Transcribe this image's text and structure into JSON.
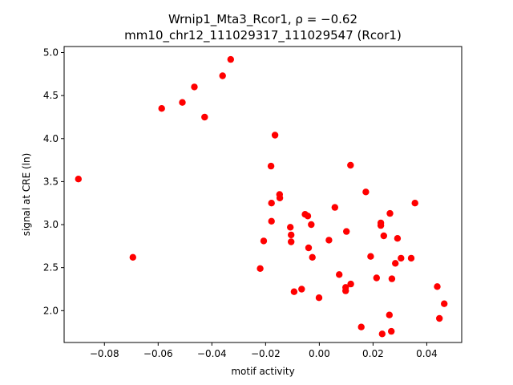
{
  "chart_data": {
    "type": "scatter",
    "title_line1": "Wrnip1_Mta3_Rcor1, ρ = −0.62",
    "title_line2": "mm10_chr12_111029317_111029547 (Rcor1)",
    "xlabel": "motif activity",
    "ylabel": "signal at CRE (ln)",
    "xlim": [
      -0.095,
      0.053
    ],
    "ylim": [
      1.63,
      5.07
    ],
    "xticks": [
      -0.08,
      -0.06,
      -0.04,
      -0.02,
      0.0,
      0.02,
      0.04
    ],
    "xtick_labels": [
      "−0.08",
      "−0.06",
      "−0.04",
      "−0.02",
      "0.00",
      "0.02",
      "0.04"
    ],
    "yticks": [
      2.0,
      2.5,
      3.0,
      3.5,
      4.0,
      4.5,
      5.0
    ],
    "ytick_labels": [
      "2.0",
      "2.5",
      "3.0",
      "3.5",
      "4.0",
      "4.5",
      "5.0"
    ],
    "grid": false,
    "marker_color": "#ff0000",
    "points": [
      {
        "x": -0.0897,
        "y": 3.53
      },
      {
        "x": -0.0694,
        "y": 2.62
      },
      {
        "x": -0.0587,
        "y": 4.35
      },
      {
        "x": -0.051,
        "y": 4.42
      },
      {
        "x": -0.0465,
        "y": 4.6
      },
      {
        "x": -0.0427,
        "y": 4.25
      },
      {
        "x": -0.036,
        "y": 4.73
      },
      {
        "x": -0.033,
        "y": 4.92
      },
      {
        "x": -0.022,
        "y": 2.49
      },
      {
        "x": -0.0207,
        "y": 2.81
      },
      {
        "x": -0.018,
        "y": 3.68
      },
      {
        "x": -0.0178,
        "y": 3.04
      },
      {
        "x": -0.0178,
        "y": 3.25
      },
      {
        "x": -0.0165,
        "y": 4.04
      },
      {
        "x": -0.0148,
        "y": 3.35
      },
      {
        "x": -0.0147,
        "y": 3.31
      },
      {
        "x": -0.0108,
        "y": 2.97
      },
      {
        "x": -0.0105,
        "y": 2.88
      },
      {
        "x": -0.0105,
        "y": 2.8
      },
      {
        "x": -0.0094,
        "y": 2.22
      },
      {
        "x": -0.0066,
        "y": 2.25
      },
      {
        "x": -0.0053,
        "y": 3.12
      },
      {
        "x": -0.0043,
        "y": 3.1
      },
      {
        "x": -0.004,
        "y": 2.73
      },
      {
        "x": -0.003,
        "y": 3.0
      },
      {
        "x": -0.0026,
        "y": 2.62
      },
      {
        "x": -0.0001,
        "y": 2.15
      },
      {
        "x": 0.0036,
        "y": 2.82
      },
      {
        "x": 0.0058,
        "y": 3.2
      },
      {
        "x": 0.0074,
        "y": 2.42
      },
      {
        "x": 0.0098,
        "y": 2.27
      },
      {
        "x": 0.0098,
        "y": 2.23
      },
      {
        "x": 0.0101,
        "y": 2.92
      },
      {
        "x": 0.0116,
        "y": 3.69
      },
      {
        "x": 0.0117,
        "y": 2.31
      },
      {
        "x": 0.0156,
        "y": 1.81
      },
      {
        "x": 0.0173,
        "y": 3.38
      },
      {
        "x": 0.0191,
        "y": 2.63
      },
      {
        "x": 0.0213,
        "y": 2.38
      },
      {
        "x": 0.0229,
        "y": 3.02
      },
      {
        "x": 0.0229,
        "y": 2.99
      },
      {
        "x": 0.0234,
        "y": 1.73
      },
      {
        "x": 0.024,
        "y": 2.87
      },
      {
        "x": 0.0261,
        "y": 1.95
      },
      {
        "x": 0.0263,
        "y": 3.13
      },
      {
        "x": 0.0268,
        "y": 1.76
      },
      {
        "x": 0.027,
        "y": 2.37
      },
      {
        "x": 0.0283,
        "y": 2.55
      },
      {
        "x": 0.0291,
        "y": 2.84
      },
      {
        "x": 0.0304,
        "y": 2.61
      },
      {
        "x": 0.0342,
        "y": 2.61
      },
      {
        "x": 0.0356,
        "y": 3.25
      },
      {
        "x": 0.0439,
        "y": 2.28
      },
      {
        "x": 0.0447,
        "y": 1.91
      },
      {
        "x": 0.0465,
        "y": 2.08
      }
    ]
  }
}
